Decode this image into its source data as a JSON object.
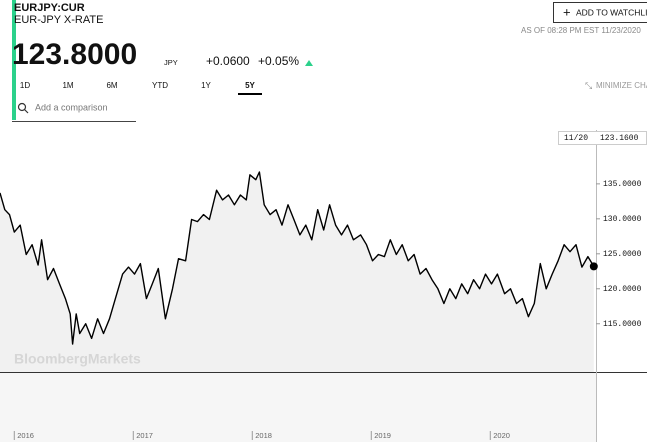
{
  "header": {
    "ticker": "EURJPY:CUR",
    "name": "EUR-JPY X-RATE",
    "watchlist": "ADD TO WATCHLIST",
    "as_of": "AS OF 08:28 PM EST 11/23/2020",
    "price": "123.8000",
    "currency": "JPY",
    "change": "+0.0600",
    "change_pct": "+0.05%"
  },
  "tabs": [
    "1D",
    "1M",
    "6M",
    "YTD",
    "1Y",
    "5Y"
  ],
  "active_tab": 5,
  "minimize": "MINIMIZE CHART",
  "comparison_placeholder": "Add a comparison",
  "watermark": "BloombergMarkets",
  "chart_data": {
    "type": "line",
    "last_date_label": "11/20",
    "last_value_label": "123.1600",
    "xlim": [
      2015.88,
      2020.88
    ],
    "xticks": [
      2016,
      2017,
      2018,
      2019,
      2020
    ],
    "ylim": [
      108.1,
      142.7
    ],
    "yticks": [
      {
        "value": 135,
        "label": "135.0000"
      },
      {
        "value": 130,
        "label": "130.0000"
      },
      {
        "value": 125,
        "label": "125.0000"
      },
      {
        "value": 120,
        "label": "120.0000"
      },
      {
        "value": 115,
        "label": "115.0000"
      }
    ],
    "series": [
      {
        "color": "#000000",
        "x": [
          2015.88,
          2015.92,
          2015.96,
          2016.0,
          2016.05,
          2016.1,
          2016.15,
          2016.2,
          2016.23,
          2016.28,
          2016.33,
          2016.38,
          2016.43,
          2016.47,
          2016.49,
          2016.52,
          2016.55,
          2016.6,
          2016.65,
          2016.7,
          2016.75,
          2016.8,
          2016.85,
          2016.91,
          2016.96,
          2017.01,
          2017.06,
          2017.11,
          2017.16,
          2017.21,
          2017.27,
          2017.33,
          2017.38,
          2017.44,
          2017.49,
          2017.54,
          2017.59,
          2017.64,
          2017.7,
          2017.75,
          2017.8,
          2017.85,
          2017.9,
          2017.95,
          2017.98,
          2018.03,
          2018.06,
          2018.1,
          2018.15,
          2018.2,
          2018.25,
          2018.3,
          2018.35,
          2018.4,
          2018.45,
          2018.5,
          2018.55,
          2018.6,
          2018.65,
          2018.7,
          2018.75,
          2018.8,
          2018.85,
          2018.91,
          2018.96,
          2019.01,
          2019.06,
          2019.11,
          2019.16,
          2019.21,
          2019.26,
          2019.31,
          2019.36,
          2019.41,
          2019.46,
          2019.51,
          2019.56,
          2019.61,
          2019.66,
          2019.71,
          2019.76,
          2019.81,
          2019.86,
          2019.91,
          2019.96,
          2020.01,
          2020.06,
          2020.12,
          2020.17,
          2020.22,
          2020.27,
          2020.32,
          2020.37,
          2020.42,
          2020.47,
          2020.52,
          2020.57,
          2020.62,
          2020.67,
          2020.72,
          2020.77,
          2020.82,
          2020.87
        ],
        "values": [
          133.7,
          131.3,
          130.6,
          128.1,
          129.1,
          124.9,
          126.3,
          123.4,
          127,
          121.3,
          122.9,
          120.7,
          118.6,
          116.4,
          112.1,
          116.4,
          113.6,
          115,
          112.9,
          115.7,
          113.6,
          115.7,
          118.6,
          122.1,
          123.1,
          122.1,
          123.6,
          118.6,
          120.7,
          122.9,
          115.7,
          120,
          124.3,
          124,
          129.9,
          129.6,
          130.6,
          129.9,
          134.1,
          132.7,
          133.4,
          132,
          133.4,
          132.7,
          136.3,
          135.6,
          136.7,
          132,
          130.6,
          131.3,
          129.1,
          132,
          129.9,
          127.7,
          129.1,
          127,
          131.3,
          128.4,
          132,
          129.1,
          127.7,
          129.1,
          127,
          127.7,
          126.3,
          124,
          124.9,
          124.6,
          127,
          124.9,
          126.3,
          124,
          124.9,
          122.1,
          122.9,
          121.3,
          120,
          117.9,
          120,
          118.6,
          120.7,
          119.3,
          121.3,
          120,
          122.1,
          120.7,
          122.1,
          119.3,
          120,
          117.9,
          118.6,
          116,
          117.9,
          123.6,
          120,
          122.1,
          124,
          126.3,
          125.3,
          126.3,
          123.1,
          124.6,
          123.2
        ]
      }
    ]
  }
}
